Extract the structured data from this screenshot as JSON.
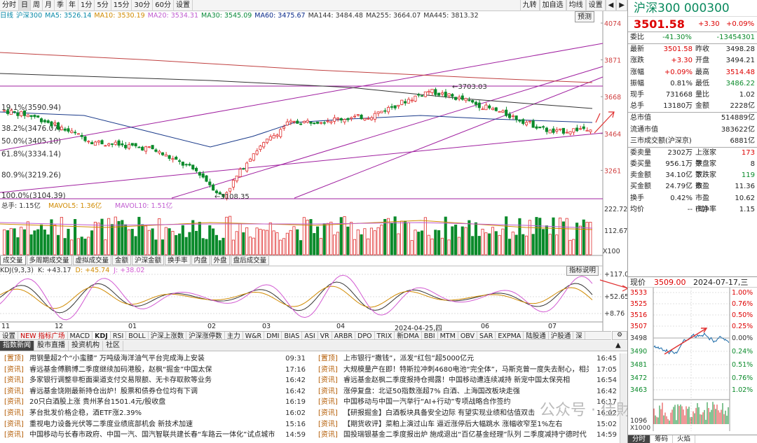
{
  "toolbar": {
    "items": [
      "分时",
      "日",
      "周",
      "月",
      "季",
      "年",
      "1分",
      "5分",
      "15分",
      "30分",
      "60分",
      "设置"
    ],
    "active": "日",
    "right": [
      "九转",
      "加自选",
      "均线",
      "设置"
    ],
    "preview_label": "预测"
  },
  "ma_legend": [
    {
      "text": "日线",
      "color": "#0a8aa8"
    },
    {
      "text": "沪深300",
      "color": "#0a8aa8"
    },
    {
      "text": "MA5: 3526.14",
      "color": "#0a8aa8"
    },
    {
      "text": "MA10: 3530.19",
      "color": "#d08a00"
    },
    {
      "text": "MA20: 3534.31",
      "color": "#c05cd0"
    },
    {
      "text": "MA30: 3545.09",
      "color": "#0a8a3a"
    },
    {
      "text": "MA60: 3475.67",
      "color": "#0a2a8a"
    },
    {
      "text": "MA144: 3484.48",
      "color": "#333333"
    },
    {
      "text": "MA255: 3664.07",
      "color": "#333333"
    },
    {
      "text": "MA445: 3813.32",
      "color": "#333333"
    }
  ],
  "price_axis": [
    "4074",
    "3871",
    "3668",
    "3464",
    "3261"
  ],
  "fib_labels": [
    "19.1%(3590.94)",
    "38.2%(3476.07)",
    "50.0%(3405.10)",
    "61.8%(3334.14)",
    "80.9%(3219.26)",
    "100.0%(3104.39)"
  ],
  "high_label": "3703.03",
  "low_label": "3108.35",
  "volume": {
    "legend": [
      "总手: 1.15亿",
      "MAVOL5: 1.36亿",
      "MAVOL10: 1.51亿"
    ],
    "axis": [
      "222.72万",
      "112.67万"
    ],
    "unit": "X100"
  },
  "tabs1": [
    "成交量",
    "多周期成交量",
    "虚拟成交量",
    "金额",
    "沪深金额",
    "换手率",
    "内盘",
    "外盘",
    "盘后成交量"
  ],
  "kdj": {
    "legend": [
      "KDJ(9,3,3)",
      "K: +43.17",
      "D: +45.74",
      "J: +38.02"
    ],
    "button": "指标说明",
    "axis": [
      "117.0",
      "52.65",
      "8.76"
    ]
  },
  "xaxis": [
    {
      "label": "11",
      "x": 2
    },
    {
      "label": "12",
      "x": 78
    },
    {
      "label": "01",
      "x": 183
    },
    {
      "label": "02",
      "x": 296
    },
    {
      "label": "03",
      "x": 374
    },
    {
      "label": "04",
      "x": 480
    },
    {
      "label": "2024-04-25,四",
      "x": 563
    },
    {
      "label": "06",
      "x": 686
    },
    {
      "label": "07",
      "x": 782
    }
  ],
  "tabs2": [
    "设置",
    "NEW 指标广场",
    "MACD",
    "KDJ",
    "RSI",
    "BOLL",
    "沪深上涨数",
    "沪深涨停数",
    "主力",
    "W&R",
    "DMI",
    "BIAS",
    "ASI",
    "VR",
    "ARBR",
    "DPO",
    "TRIX",
    "新DMA",
    "BBI",
    "MTM",
    "OBV",
    "SAR",
    "EXPMA",
    "陆股通",
    "沪股通",
    "深"
  ],
  "newsbar": [
    "指数新闻",
    "股市直播",
    "投资机构",
    "社区"
  ],
  "news_left": [
    {
      "tag": "置顶",
      "title": "用钢量超2个“小蛮腰” 万吨级海洋油气平台完成海上安装",
      "time": "09:31"
    },
    {
      "tag": "资讯",
      "title": "睿远基金傅鹏博二季度继续加码港股，赵枫“掘金”中国太保",
      "time": "17:16"
    },
    {
      "tag": "资讯",
      "title": "多家银行调整非柜面渠道支付交易限额、无卡存取款等业务",
      "time": "16:42"
    },
    {
      "tag": "资讯",
      "title": "睿远基金饶刚最新持仓出炉！股票和债券仓位均有下调",
      "time": "16:42"
    },
    {
      "tag": "资讯",
      "title": "20只白酒股上涨 贵州茅台1501.4元/股收盘",
      "time": "16:19"
    },
    {
      "tag": "资讯",
      "title": "茅台批发价格企稳，酒ETF涨2.39%",
      "time": "16:02"
    },
    {
      "tag": "资讯",
      "title": "重视电力设备光伏等二季度业绩底部机会 新技术加速",
      "time": "15:16"
    },
    {
      "tag": "资讯",
      "title": "中国移动与长春市政府、中国一汽、国汽智联共建长春“车路云一体化”试点城市",
      "time": "14:59"
    }
  ],
  "news_right": [
    {
      "tag": "置顶",
      "title": "上市银行“撒钱”，派发“红包”超5000亿元",
      "time": "16:45"
    },
    {
      "tag": "资讯",
      "title": "大规模量产在即！特斯拉冲刺4680电池“完全体”，马斯克曾一度失去耐心，相关…",
      "time": "17:05"
    },
    {
      "tag": "资讯",
      "title": "睿远基金赵枫二季度报持仓揭露！中国移动遭连续减持 新宠中国太保亮相",
      "time": "16:54"
    },
    {
      "tag": "资讯",
      "title": "涨停复盘：北证50指数涨超7% 白酒、上海国改板块走强",
      "time": "16:42"
    },
    {
      "tag": "资讯",
      "title": "中国移动与中国一汽举行“AI+行动”专项战略合作签约",
      "time": "16:17"
    },
    {
      "tag": "资讯",
      "title": "【研报掘金】白酒板块具备安全边际 有望实现业绩和估值双击",
      "time": "16:02"
    },
    {
      "tag": "资讯",
      "title": "【期货收评】菜粕上演过山车 逼近涨停后大幅跳水 涨幅收窄至1%左右",
      "time": "15:02"
    },
    {
      "tag": "资讯",
      "title": "国投瑞银基金二季度报出炉 施成退出“百亿基金经理”队列 二季度减持宁德时代",
      "time": "14:59"
    }
  ],
  "right": {
    "title": "沪深300 000300",
    "price": "3501.58",
    "change": "+3.30",
    "pct": "+0.09%",
    "rows1": [
      {
        "k1": "委比",
        "v1": "-41.30%",
        "c1": "grn",
        "k2": "",
        "v2": "-13454301",
        "c2": "grn"
      }
    ],
    "rows2": [
      {
        "k1": "最新",
        "v1": "3501.58",
        "c1": "red",
        "k2": "昨收",
        "v2": "3498.28",
        "c2": ""
      },
      {
        "k1": "涨跌",
        "v1": "+3.30",
        "c1": "red",
        "k2": "开盘",
        "v2": "3494.21",
        "c2": ""
      },
      {
        "k1": "涨幅",
        "v1": "+0.09%",
        "c1": "red",
        "k2": "最高",
        "v2": "3514.48",
        "c2": "red"
      },
      {
        "k1": "振幅",
        "v1": "0.81%",
        "c1": "",
        "k2": "最低",
        "v2": "3486.22",
        "c2": "grn"
      },
      {
        "k1": "现手",
        "v1": "731668",
        "c1": "",
        "k2": "量比",
        "v2": "1.02",
        "c2": ""
      },
      {
        "k1": "总手",
        "v1": "13180万",
        "c1": "",
        "k2": "金额",
        "v2": "2228亿",
        "c2": ""
      }
    ],
    "rows3": [
      {
        "k": "总市值",
        "v": "514889亿"
      },
      {
        "k": "流通市值",
        "v": "383622亿"
      },
      {
        "k": "三市成交额(沪深京)",
        "v": "6881亿"
      }
    ],
    "rows4": [
      {
        "k1": "委卖量",
        "v1": "2302万",
        "k2": "上涨家数",
        "v2": "173",
        "c2": "red"
      },
      {
        "k1": "委买量",
        "v1": "956.1万",
        "k2": "平盘家数",
        "v2": "8",
        "c2": ""
      },
      {
        "k1": "卖金额",
        "v1": "34.10亿",
        "k2": "下跌家数",
        "v2": "119",
        "c2": "grn"
      },
      {
        "k1": "买金额",
        "v1": "24.79亿",
        "k2": "市盈",
        "v2": "11.36",
        "c2": ""
      },
      {
        "k1": "换手",
        "v1": "0.42%",
        "k2": "市盈(动)",
        "v2": "10.62",
        "c2": ""
      },
      {
        "k1": "均价",
        "v1": "--",
        "k2": "市净率",
        "v2": "1.15",
        "c2": ""
      }
    ],
    "mini": {
      "head_label": "现价",
      "head_price": "3509.00",
      "head_date": "2024-07-17,三",
      "left_axis": [
        "3533",
        "3525",
        "3516",
        "3507",
        "3498",
        "3490",
        "3481",
        "3472",
        "3463",
        "1096"
      ],
      "right_axis": [
        "1.00%",
        "0.76%",
        "0.50%",
        "0.25%",
        "0.00%",
        "0.24%",
        "0.51%",
        "0.76%",
        "1.02%"
      ],
      "unit": "X1000",
      "tabs": [
        "分时",
        "筹码",
        "火焰"
      ]
    }
  },
  "watermark": "公众号 · 佳財一分钟"
}
